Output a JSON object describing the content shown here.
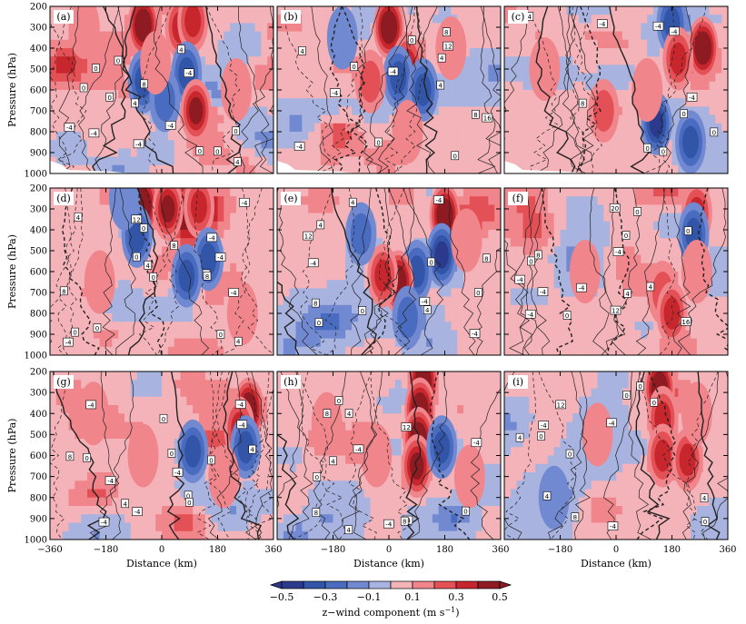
{
  "chart_data": {
    "type": "heatmap",
    "description_of_axes": {
      "xlabel": "Distance (km)",
      "ylabel": "Pressure (hPa)",
      "xlim": [
        -360,
        360
      ],
      "ylim": [
        1000,
        200
      ],
      "x_ticks": [
        "−360",
        "−180",
        "0",
        "180",
        "360"
      ],
      "x_tick_values": [
        -360,
        -180,
        0,
        180,
        360
      ],
      "y_ticks": [
        "200",
        "300",
        "400",
        "500",
        "600",
        "700",
        "800",
        "900",
        "1000"
      ],
      "y_tick_values": [
        200,
        300,
        400,
        500,
        600,
        700,
        800,
        900,
        1000
      ]
    },
    "panels": [
      {
        "label": "(a)",
        "contour_labels": [
          "0",
          "0",
          "-4",
          "-4",
          "-4",
          "-4",
          "-4",
          "0",
          "0",
          "0",
          "4",
          "8",
          "4",
          "0",
          "4",
          "0"
        ],
        "blobs": [
          {
            "x": -60,
            "p": 290,
            "v": 0.45
          },
          {
            "x": 60,
            "p": 300,
            "v": 0.35
          },
          {
            "x": 100,
            "p": 270,
            "v": 0.3
          },
          {
            "x": -60,
            "p": 560,
            "v": -0.35
          },
          {
            "x": 80,
            "p": 520,
            "v": -0.3
          },
          {
            "x": 10,
            "p": 650,
            "v": -0.2
          },
          {
            "x": 110,
            "p": 700,
            "v": 0.4
          },
          {
            "x": -20,
            "p": 470,
            "v": 0.15
          },
          {
            "x": -250,
            "p": 300,
            "v": 0.12
          },
          {
            "x": 240,
            "p": 600,
            "v": 0.12
          }
        ]
      },
      {
        "label": "(b)",
        "contour_labels": [
          "0",
          "0",
          "-4",
          "4",
          "-4",
          "0",
          "8",
          "4",
          "12",
          "16",
          "8",
          "-4",
          "4",
          "0"
        ],
        "blobs": [
          {
            "x": 0,
            "p": 300,
            "v": 0.5
          },
          {
            "x": 60,
            "p": 480,
            "v": 0.3
          },
          {
            "x": 30,
            "p": 540,
            "v": -0.35
          },
          {
            "x": 110,
            "p": 600,
            "v": -0.35
          },
          {
            "x": -60,
            "p": 560,
            "v": 0.2
          },
          {
            "x": -150,
            "p": 350,
            "v": -0.12
          },
          {
            "x": 200,
            "p": 400,
            "v": 0.12
          },
          {
            "x": 60,
            "p": 800,
            "v": 0.15
          }
        ]
      },
      {
        "label": "(c)",
        "contour_labels": [
          "0",
          "-4",
          "0",
          "-4",
          "4",
          "0",
          "8",
          "0",
          "-4",
          "-4"
        ],
        "blobs": [
          {
            "x": 180,
            "p": 280,
            "v": -0.3
          },
          {
            "x": 280,
            "p": 400,
            "v": 0.45
          },
          {
            "x": 200,
            "p": 450,
            "v": 0.25
          },
          {
            "x": 130,
            "p": 760,
            "v": -0.4
          },
          {
            "x": 240,
            "p": 850,
            "v": -0.3
          },
          {
            "x": -40,
            "p": 700,
            "v": 0.2
          },
          {
            "x": -230,
            "p": 500,
            "v": 0.12
          },
          {
            "x": 100,
            "p": 600,
            "v": 0.12
          }
        ]
      },
      {
        "label": "(d)",
        "contour_labels": [
          "0",
          "-4",
          "-4",
          "8",
          "4",
          "-4",
          "8",
          "-4",
          "0",
          "4",
          "0",
          "-4",
          "0",
          "0",
          "8",
          "12",
          "8",
          "4",
          "0"
        ],
        "blobs": [
          {
            "x": -60,
            "p": 280,
            "v": 0.45
          },
          {
            "x": 20,
            "p": 300,
            "v": 0.4
          },
          {
            "x": 120,
            "p": 290,
            "v": 0.35
          },
          {
            "x": -80,
            "p": 430,
            "v": -0.35
          },
          {
            "x": 150,
            "p": 540,
            "v": -0.35
          },
          {
            "x": 80,
            "p": 620,
            "v": -0.3
          },
          {
            "x": -200,
            "p": 650,
            "v": 0.12
          },
          {
            "x": -120,
            "p": 250,
            "v": -0.15
          },
          {
            "x": 260,
            "p": 800,
            "v": 0.12
          }
        ]
      },
      {
        "label": "(e)",
        "contour_labels": [
          "-4",
          "0",
          "-4",
          "8",
          "12",
          "4",
          "-4",
          "8",
          "4",
          "0",
          "0",
          "-4",
          "4",
          "0"
        ],
        "blobs": [
          {
            "x": 180,
            "p": 330,
            "v": 0.5
          },
          {
            "x": 170,
            "p": 520,
            "v": -0.4
          },
          {
            "x": 90,
            "p": 600,
            "v": -0.3
          },
          {
            "x": 30,
            "p": 650,
            "v": 0.45
          },
          {
            "x": -20,
            "p": 620,
            "v": 0.25
          },
          {
            "x": -90,
            "p": 420,
            "v": -0.2
          },
          {
            "x": 60,
            "p": 820,
            "v": -0.2
          },
          {
            "x": 250,
            "p": 450,
            "v": 0.15
          }
        ]
      },
      {
        "label": "(f)",
        "contour_labels": [
          "-4",
          "4",
          "0",
          "0",
          "8",
          "0",
          "-4",
          "-4",
          "-4",
          "0",
          "4",
          "12",
          "16",
          "20",
          "-4",
          "0"
        ],
        "blobs": [
          {
            "x": 260,
            "p": 320,
            "v": 0.35
          },
          {
            "x": 250,
            "p": 420,
            "v": -0.25
          },
          {
            "x": 150,
            "p": 700,
            "v": 0.2
          },
          {
            "x": 180,
            "p": 800,
            "v": 0.3
          },
          {
            "x": -100,
            "p": 600,
            "v": 0.12
          },
          {
            "x": 260,
            "p": 600,
            "v": 0.12
          }
        ]
      },
      {
        "label": "(g)",
        "contour_labels": [
          "0",
          "0",
          "-4",
          "-4",
          "0",
          "-4",
          "-4",
          "-4",
          "4",
          "-4",
          "0",
          "4",
          "0",
          "8",
          "-4",
          "0"
        ],
        "blobs": [
          {
            "x": 280,
            "p": 380,
            "v": 0.45
          },
          {
            "x": 250,
            "p": 470,
            "v": 0.3
          },
          {
            "x": 270,
            "p": 560,
            "v": -0.3
          },
          {
            "x": 100,
            "p": 580,
            "v": -0.25
          },
          {
            "x": -60,
            "p": 600,
            "v": 0.12
          },
          {
            "x": 200,
            "p": 700,
            "v": 0.12
          },
          {
            "x": -220,
            "p": 400,
            "v": 0.12
          }
        ]
      },
      {
        "label": "(h)",
        "contour_labels": [
          "0",
          "-4",
          "-4",
          "-4",
          "0",
          "8",
          "4",
          "4",
          "12",
          "4",
          "-4",
          "8",
          "0",
          "8"
        ],
        "blobs": [
          {
            "x": 110,
            "p": 250,
            "v": 0.5
          },
          {
            "x": 100,
            "p": 380,
            "v": 0.5
          },
          {
            "x": 95,
            "p": 520,
            "v": 0.45
          },
          {
            "x": 90,
            "p": 650,
            "v": 0.4
          },
          {
            "x": 170,
            "p": 560,
            "v": -0.3
          },
          {
            "x": -40,
            "p": 600,
            "v": 0.12
          },
          {
            "x": -200,
            "p": 450,
            "v": 0.12
          },
          {
            "x": 260,
            "p": 700,
            "v": 0.12
          }
        ]
      },
      {
        "label": "(i)",
        "contour_labels": [
          "0",
          "0",
          "-4",
          "0",
          "4",
          "-4",
          "0",
          "8",
          "12",
          "4",
          "-4",
          "0",
          "4",
          "0"
        ],
        "blobs": [
          {
            "x": 140,
            "p": 280,
            "v": 0.45
          },
          {
            "x": 150,
            "p": 420,
            "v": 0.35
          },
          {
            "x": 150,
            "p": 600,
            "v": 0.3
          },
          {
            "x": 230,
            "p": 620,
            "v": 0.25
          },
          {
            "x": -60,
            "p": 500,
            "v": 0.12
          },
          {
            "x": 260,
            "p": 400,
            "v": 0.12
          },
          {
            "x": -200,
            "p": 800,
            "v": -0.1
          }
        ]
      }
    ],
    "colorbar": {
      "label": "z−wind component (m s",
      "label_sup": "−1",
      "label_tail": ")",
      "tick_labels": [
        "−0.5",
        "−0.3",
        "−0.1",
        "0.1",
        "0.3",
        "0.5"
      ],
      "tick_values": [
        -0.5,
        -0.3,
        -0.1,
        0.1,
        0.3,
        0.5
      ],
      "levels": [
        -0.5,
        -0.4,
        -0.3,
        -0.2,
        -0.1,
        0,
        0.1,
        0.2,
        0.3,
        0.4,
        0.5
      ],
      "colors": [
        "#2b3a8c",
        "#3355a8",
        "#4a6cc0",
        "#7189d0",
        "#a9b3df",
        "#f4b3b8",
        "#f0858c",
        "#e35055",
        "#c8262d",
        "#8e1a22"
      ]
    }
  }
}
